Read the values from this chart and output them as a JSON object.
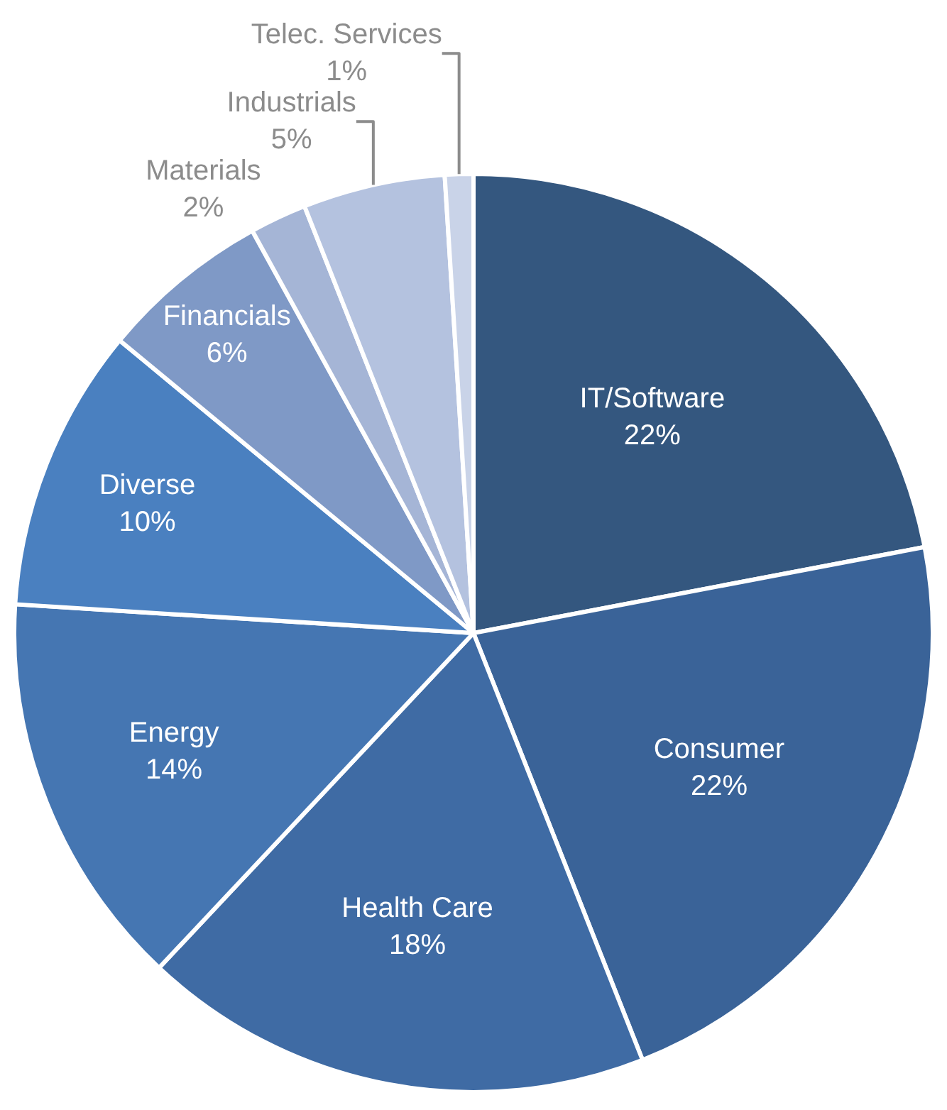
{
  "chart_data": {
    "type": "pie",
    "categories": [
      "IT/Software",
      "Consumer",
      "Health Care",
      "Energy",
      "Diverse",
      "Financials",
      "Materials",
      "Industrials",
      "Telec. Services"
    ],
    "values": [
      22,
      22,
      18,
      14,
      10,
      6,
      2,
      5,
      1
    ],
    "value_labels": [
      "22%",
      "22%",
      "18%",
      "14%",
      "10%",
      "6%",
      "2%",
      "5%",
      "1%"
    ],
    "colors": [
      "#34577f",
      "#3a6398",
      "#3f6ba4",
      "#4576b2",
      "#4a80c0",
      "#7f99c6",
      "#a5b5d6",
      "#b4c2df",
      "#c9d3e8"
    ],
    "legend": false
  }
}
